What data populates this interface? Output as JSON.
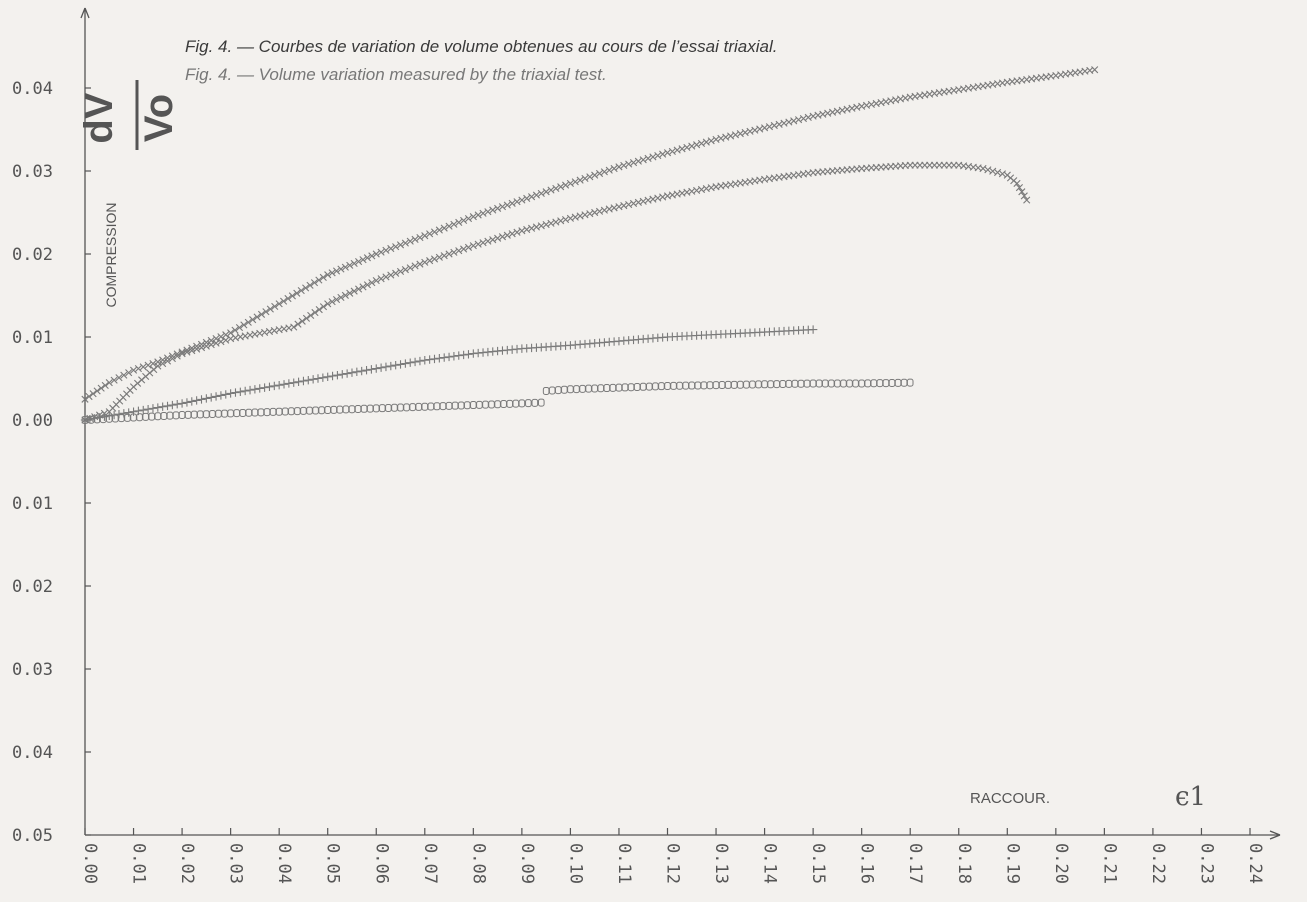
{
  "figure": {
    "caption_fr": "Fig. 4. — Courbes de variation de volume obtenues au cours de l’essai triaxial.",
    "caption_en": "Fig. 4. — Volume variation measured by the triaxial test."
  },
  "chart_data": {
    "type": "scatter",
    "ylabel_top": "dV",
    "ylabel_bottom": "Vo",
    "y_annotation": "COMPRESSION",
    "x_annotation": "RACCOUR.",
    "x_symbol": "ϵ1",
    "xlim": [
      0,
      0.24
    ],
    "ylim": [
      -0.05,
      0.05
    ],
    "x_ticks": [
      "0.00",
      "0.01",
      "0.02",
      "0.03",
      "0.04",
      "0.05",
      "0.06",
      "0.07",
      "0.08",
      "0.09",
      "0.10",
      "0.11",
      "0.12",
      "0.13",
      "0.14",
      "0.15",
      "0.16",
      "0.17",
      "0.18",
      "0.19",
      "0.20",
      "0.21",
      "0.22",
      "0.23",
      "0.24"
    ],
    "y_ticks": [
      {
        "value": 0.04,
        "label": "0.04"
      },
      {
        "value": 0.03,
        "label": "0.03"
      },
      {
        "value": 0.02,
        "label": "0.02"
      },
      {
        "value": 0.01,
        "label": "0.01"
      },
      {
        "value": 0.0,
        "label": "0.00"
      },
      {
        "value": -0.01,
        "label": "0.01"
      },
      {
        "value": -0.02,
        "label": "0.02"
      },
      {
        "value": -0.03,
        "label": "0.03"
      },
      {
        "value": -0.04,
        "label": "0.04"
      },
      {
        "value": -0.05,
        "label": "0.05"
      }
    ],
    "grid": false,
    "colors": {
      "series": "#7a7a7a",
      "axis": "#555555",
      "text": "#555555",
      "caption_fr": "#3a3a3a",
      "caption_en": "#777777"
    },
    "series": [
      {
        "marker": "x",
        "x": [
          0.0,
          0.005,
          0.01,
          0.015,
          0.02,
          0.03,
          0.04,
          0.05,
          0.06,
          0.07,
          0.08,
          0.09,
          0.1,
          0.11,
          0.12,
          0.13,
          0.14,
          0.15,
          0.16,
          0.17,
          0.18,
          0.19,
          0.2,
          0.208
        ],
        "y": [
          0.0025,
          0.0045,
          0.006,
          0.007,
          0.0082,
          0.0105,
          0.014,
          0.0175,
          0.02,
          0.0222,
          0.0245,
          0.0265,
          0.0285,
          0.0305,
          0.0322,
          0.0338,
          0.0352,
          0.0366,
          0.0378,
          0.0389,
          0.0398,
          0.0407,
          0.0415,
          0.0422
        ]
      },
      {
        "marker": "x",
        "x": [
          0.0,
          0.005,
          0.01,
          0.015,
          0.02,
          0.03,
          0.043,
          0.05,
          0.06,
          0.07,
          0.08,
          0.09,
          0.1,
          0.11,
          0.12,
          0.13,
          0.14,
          0.15,
          0.16,
          0.17,
          0.18,
          0.185,
          0.19,
          0.192,
          0.193,
          0.194
        ],
        "y": [
          0.0,
          0.001,
          0.004,
          0.0065,
          0.008,
          0.0098,
          0.0112,
          0.014,
          0.0168,
          0.019,
          0.021,
          0.0228,
          0.0243,
          0.0257,
          0.027,
          0.0281,
          0.029,
          0.0298,
          0.0303,
          0.0307,
          0.0307,
          0.0303,
          0.0295,
          0.0285,
          0.0275,
          0.0265
        ]
      },
      {
        "marker": "+",
        "x": [
          0.0,
          0.01,
          0.02,
          0.03,
          0.04,
          0.05,
          0.06,
          0.07,
          0.08,
          0.09,
          0.1,
          0.11,
          0.12,
          0.13,
          0.14,
          0.15
        ],
        "y": [
          0.0,
          0.001,
          0.002,
          0.0032,
          0.0042,
          0.0052,
          0.0062,
          0.0072,
          0.008,
          0.0086,
          0.009,
          0.0095,
          0.01,
          0.0103,
          0.0106,
          0.0109
        ]
      },
      {
        "marker": "o",
        "x": [
          0.0,
          0.01,
          0.02,
          0.03,
          0.04,
          0.05,
          0.06,
          0.07,
          0.08,
          0.09,
          0.094
        ],
        "y": [
          0.0,
          0.0003,
          0.0006,
          0.0008,
          0.001,
          0.0012,
          0.0014,
          0.0016,
          0.0018,
          0.002,
          0.0021
        ]
      },
      {
        "marker": "o",
        "x": [
          0.095,
          0.1,
          0.11,
          0.12,
          0.13,
          0.14,
          0.15,
          0.16,
          0.17
        ],
        "y": [
          0.0035,
          0.0037,
          0.0039,
          0.0041,
          0.0042,
          0.0043,
          0.0044,
          0.0044,
          0.0045
        ]
      }
    ]
  }
}
